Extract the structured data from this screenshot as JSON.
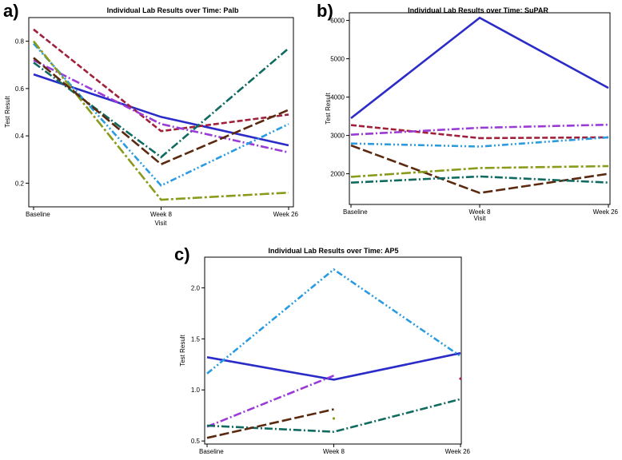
{
  "chart_data": [
    {
      "panel_label": "a)",
      "type": "line",
      "title": "Individual Lab Results over Time: Palb",
      "xlabel": "Visit",
      "ylabel": "Test Result",
      "categories": [
        "Baseline",
        "Week 8",
        "Week 26"
      ],
      "ylim": [
        0.1,
        0.9
      ],
      "yticks": [
        0.2,
        0.4,
        0.6,
        0.8
      ],
      "ytick_labels": [
        "0.2",
        "0.4",
        "0.6",
        "0.8"
      ],
      "series": [
        {
          "name": "subject-blue",
          "color": "#2b2bc8",
          "dash": "solid",
          "values": [
            0.66,
            0.48,
            0.36
          ]
        },
        {
          "name": "subject-red",
          "color": "#a0203a",
          "dash": "short-dash",
          "values": [
            0.85,
            0.42,
            0.49
          ]
        },
        {
          "name": "subject-teal",
          "color": "#0f6b60",
          "dash": "dash-dot",
          "values": [
            0.71,
            0.31,
            0.77
          ]
        },
        {
          "name": "subject-purple",
          "color": "#9b3bd6",
          "dash": "dash-dot",
          "values": [
            0.72,
            0.45,
            0.33
          ]
        },
        {
          "name": "subject-lightblue",
          "color": "#2b9be0",
          "dash": "dash-dot-dot",
          "values": [
            0.79,
            0.19,
            0.45
          ]
        },
        {
          "name": "subject-olive",
          "color": "#8a9a1a",
          "dash": "long-dash-dot",
          "values": [
            0.8,
            0.13,
            0.16
          ]
        },
        {
          "name": "subject-brown",
          "color": "#5a2a10",
          "dash": "long-dash",
          "values": [
            0.73,
            0.28,
            0.51
          ]
        }
      ]
    },
    {
      "panel_label": "b)",
      "type": "line",
      "title": "Individual Lab Results over Time: SuPAR",
      "xlabel": "Visit",
      "ylabel": "Test Result",
      "categories": [
        "Baseline",
        "Week 8",
        "Week 26"
      ],
      "ylim": [
        1200,
        6200
      ],
      "yticks": [
        2000,
        3000,
        4000,
        5000,
        6000
      ],
      "ytick_labels": [
        "2000",
        "3000",
        "4000",
        "5000",
        "6000"
      ],
      "series": [
        {
          "name": "subject-blue",
          "color": "#2b2bc8",
          "dash": "solid",
          "values": [
            3450,
            6070,
            4240
          ]
        },
        {
          "name": "subject-red",
          "color": "#a0203a",
          "dash": "short-dash",
          "values": [
            3270,
            2930,
            2950
          ]
        },
        {
          "name": "subject-purple",
          "color": "#9b3bd6",
          "dash": "dash-dot",
          "values": [
            3020,
            3200,
            3280
          ]
        },
        {
          "name": "subject-lightblue",
          "color": "#2b9be0",
          "dash": "dash-dot-dot",
          "values": [
            2790,
            2710,
            2950
          ]
        },
        {
          "name": "subject-brown",
          "color": "#5a2a10",
          "dash": "long-dash",
          "values": [
            2740,
            1500,
            2000
          ]
        },
        {
          "name": "subject-olive",
          "color": "#8a9a1a",
          "dash": "long-dash-dot",
          "values": [
            1920,
            2150,
            2200
          ]
        },
        {
          "name": "subject-teal",
          "color": "#0f6b60",
          "dash": "dash-dot",
          "values": [
            1770,
            1930,
            1770
          ]
        }
      ]
    },
    {
      "panel_label": "c)",
      "type": "line",
      "title": "Individual Lab Results over Time: AP5",
      "xlabel": "",
      "ylabel": "Test Result",
      "categories": [
        "Baseline",
        "Week 8",
        "Week 26"
      ],
      "ylim": [
        0.47,
        2.3
      ],
      "yticks": [
        0.5,
        1.0,
        1.5,
        2.0
      ],
      "ytick_labels": [
        "0.5",
        "1.0",
        "1.5",
        "2.0"
      ],
      "series": [
        {
          "name": "subject-blue",
          "color": "#2b2bc8",
          "dash": "solid",
          "values": [
            1.32,
            1.1,
            1.36
          ]
        },
        {
          "name": "subject-lightblue",
          "color": "#2b9be0",
          "dash": "dash-dot-dot",
          "values": [
            1.16,
            2.18,
            1.33
          ]
        },
        {
          "name": "subject-purple",
          "color": "#9b3bd6",
          "dash": "dash-dot",
          "values": [
            0.64,
            1.14,
            null
          ]
        },
        {
          "name": "subject-teal",
          "color": "#0f6b60",
          "dash": "dash-dot",
          "values": [
            0.65,
            0.59,
            0.91
          ]
        },
        {
          "name": "subject-brown",
          "color": "#5a2a10",
          "dash": "long-dash",
          "values": [
            0.53,
            0.81,
            null
          ]
        },
        {
          "name": "subject-olive",
          "color": "#8a9a1a",
          "dash": "long-dash-dot",
          "values": [
            null,
            0.72,
            null
          ]
        },
        {
          "name": "subject-red",
          "color": "#a0203a",
          "dash": "short-dash",
          "values": [
            null,
            null,
            1.11
          ]
        }
      ]
    }
  ]
}
